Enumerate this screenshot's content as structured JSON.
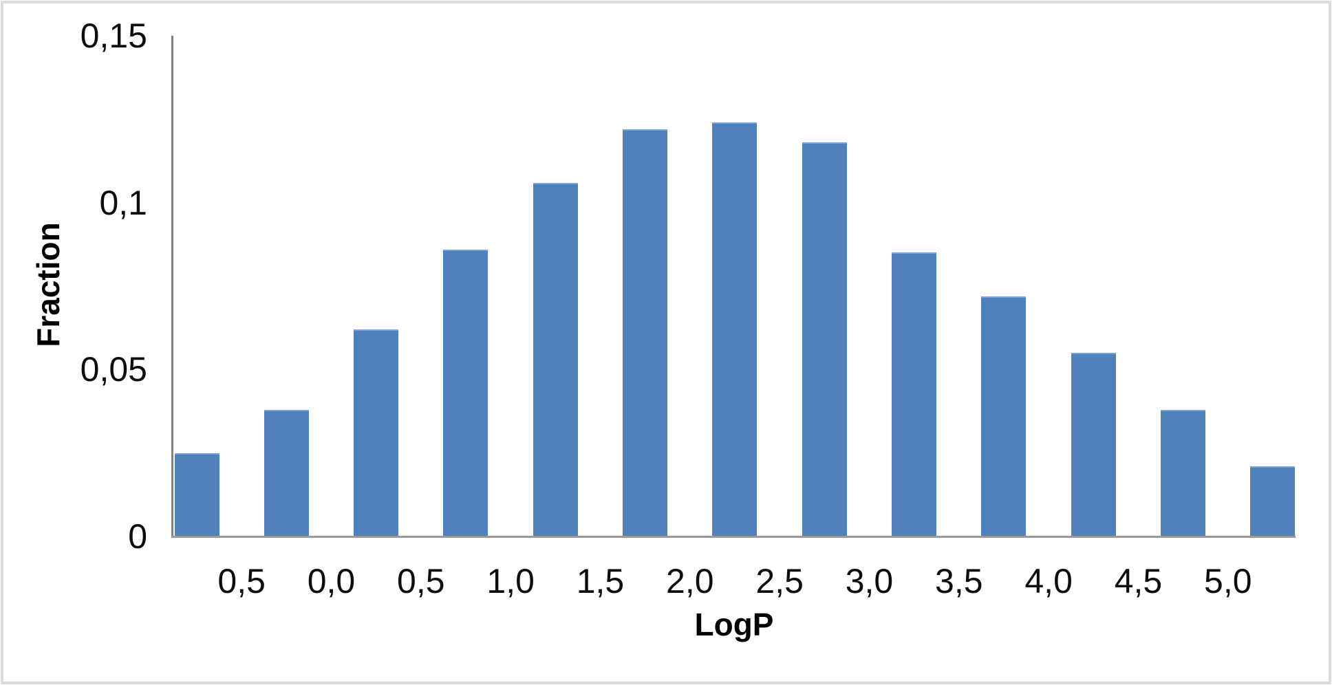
{
  "chart_data": {
    "type": "bar",
    "title": "",
    "xlabel": "LogP",
    "ylabel": "Fraction",
    "values": [
      0.025,
      0.038,
      0.062,
      0.086,
      0.106,
      0.122,
      0.124,
      0.118,
      0.085,
      0.072,
      0.055,
      0.038,
      0.021
    ],
    "x_boundary_labels": [
      "0,5",
      "0,0",
      "0,5",
      "1,0",
      "1,5",
      "2,0",
      "2,5",
      "3,0",
      "3,5",
      "4,0",
      "4,5",
      "5,0"
    ],
    "x_label_position": "between-bars",
    "y_ticks": [
      {
        "label": "0",
        "value": 0
      },
      {
        "label": "0,05",
        "value": 0.05
      },
      {
        "label": "0,1",
        "value": 0.1
      },
      {
        "label": "0,15",
        "value": 0.15
      }
    ],
    "ylim": [
      0,
      0.15
    ],
    "grid": false,
    "legend": false,
    "decimal_separator": ",",
    "bar_color": "#4F81BD",
    "bar_top_edge_color": "#7EA0CC",
    "axis_color": "#808080",
    "frame_color": "#DBDBDB"
  }
}
